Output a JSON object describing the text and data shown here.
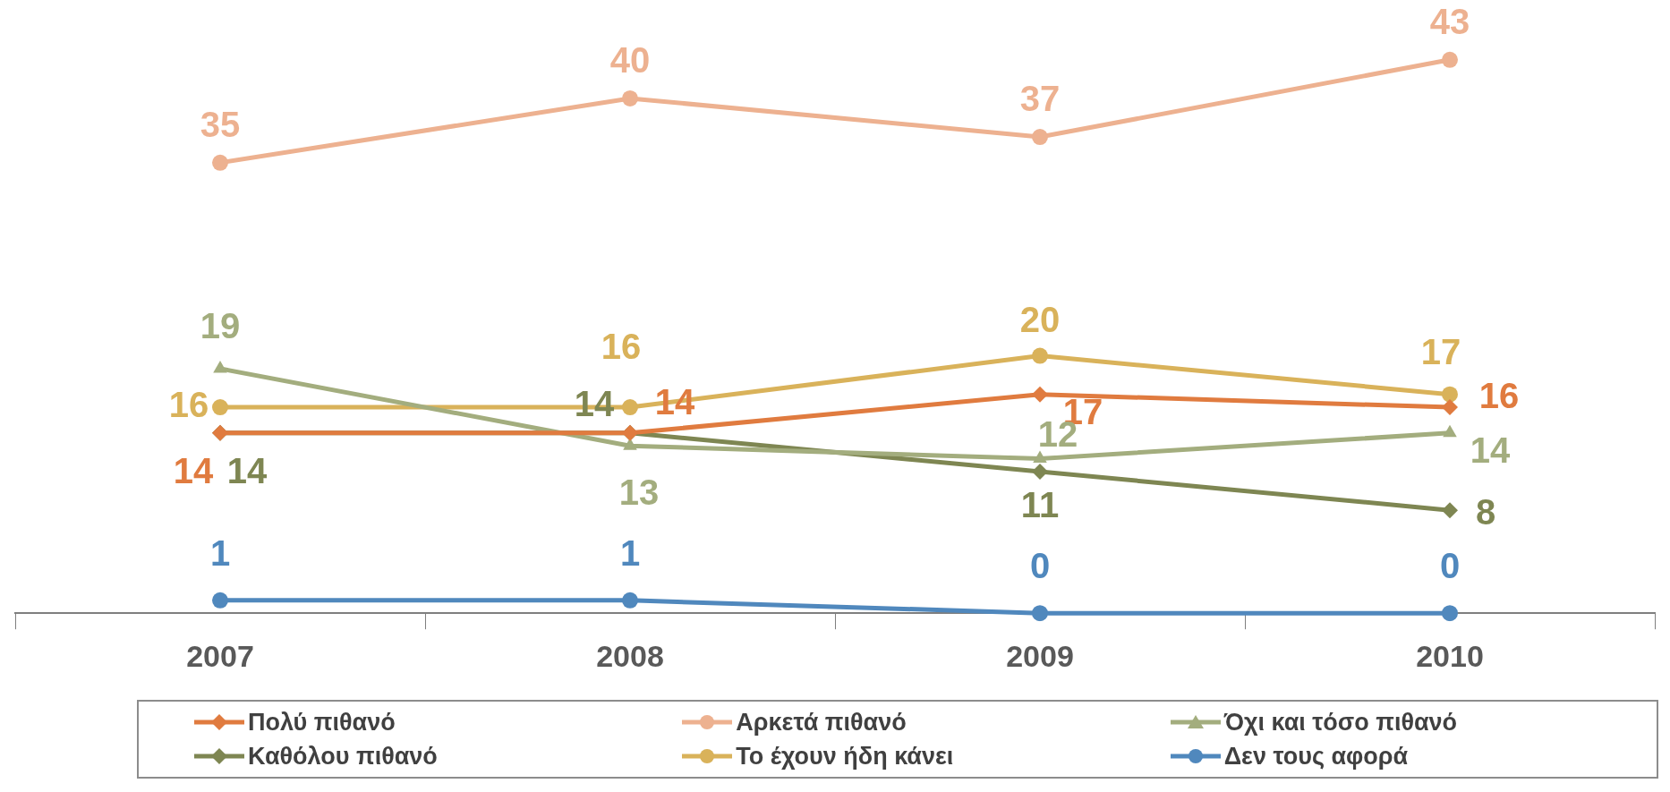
{
  "chart_data": {
    "type": "line",
    "categories": [
      "2007",
      "2008",
      "2009",
      "2010"
    ],
    "series": [
      {
        "name": "Πολύ πιθανό",
        "color": "#e07b3f",
        "marker": "diamond",
        "values": [
          14,
          14,
          17,
          16
        ]
      },
      {
        "name": "Αρκετά πιθανό",
        "color": "#edb190",
        "marker": "circle",
        "values": [
          35,
          40,
          37,
          43
        ]
      },
      {
        "name": "Όχι και τόσο πιθανό",
        "color": "#a3ad7e",
        "marker": "triangle",
        "values": [
          19,
          13,
          12,
          14
        ]
      },
      {
        "name": "Καθόλου πιθανό",
        "color": "#7e8652",
        "marker": "diamond",
        "values": [
          14,
          14,
          11,
          8
        ]
      },
      {
        "name": "Το έχουν ήδη κάνει",
        "color": "#d9b25a",
        "marker": "circle",
        "values": [
          16,
          16,
          20,
          17
        ]
      },
      {
        "name": "Δεν τους αφορά",
        "color": "#5088bd",
        "marker": "circle",
        "values": [
          1,
          1,
          0,
          0
        ]
      }
    ],
    "data_labels": true,
    "legend": "bottom",
    "grid": false
  }
}
